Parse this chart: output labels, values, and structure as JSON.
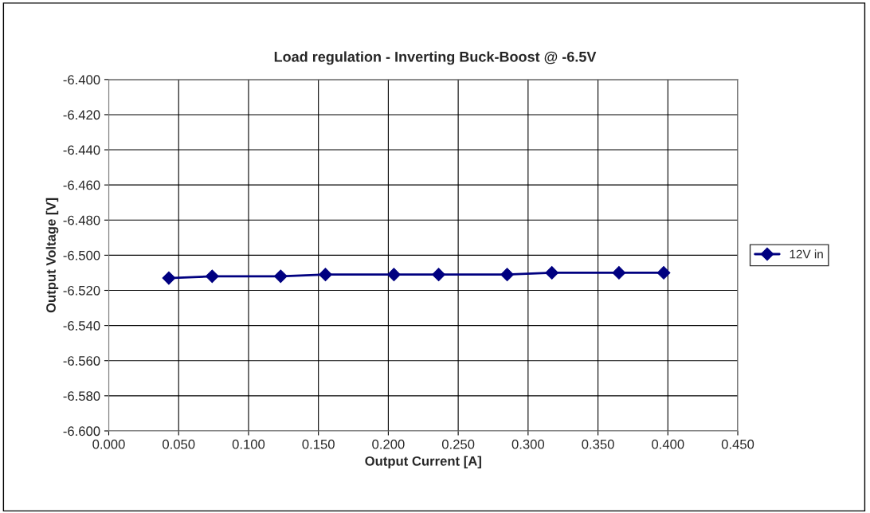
{
  "chart_data": {
    "type": "line",
    "title": "Load regulation - Inverting Buck-Boost @ -6.5V",
    "xlabel": "Output Current [A]",
    "ylabel": "Output Voltage [V]",
    "x": [
      0.043,
      0.074,
      0.123,
      0.155,
      0.204,
      0.236,
      0.285,
      0.317,
      0.365,
      0.397
    ],
    "series": [
      {
        "name": "12V in",
        "color": "#000080",
        "values": [
          -6.513,
          -6.512,
          -6.512,
          -6.511,
          -6.511,
          -6.511,
          -6.511,
          -6.51,
          -6.51,
          -6.51
        ]
      }
    ],
    "xlim": [
      0.0,
      0.45
    ],
    "xticks": [
      {
        "value": 0.0,
        "label": "0.000"
      },
      {
        "value": 0.05,
        "label": "0.050"
      },
      {
        "value": 0.1,
        "label": "0.100"
      },
      {
        "value": 0.15,
        "label": "0.150"
      },
      {
        "value": 0.2,
        "label": "0.200"
      },
      {
        "value": 0.25,
        "label": "0.250"
      },
      {
        "value": 0.3,
        "label": "0.300"
      },
      {
        "value": 0.35,
        "label": "0.350"
      },
      {
        "value": 0.4,
        "label": "0.400"
      },
      {
        "value": 0.45,
        "label": "0.450"
      }
    ],
    "ylim": [
      -6.6,
      -6.4
    ],
    "yticks": [
      {
        "value": -6.6,
        "label": "-6.600"
      },
      {
        "value": -6.58,
        "label": "-6.580"
      },
      {
        "value": -6.56,
        "label": "-6.560"
      },
      {
        "value": -6.54,
        "label": "-6.540"
      },
      {
        "value": -6.52,
        "label": "-6.520"
      },
      {
        "value": -6.5,
        "label": "-6.500"
      },
      {
        "value": -6.48,
        "label": "-6.480"
      },
      {
        "value": -6.46,
        "label": "-6.460"
      },
      {
        "value": -6.44,
        "label": "-6.440"
      },
      {
        "value": -6.42,
        "label": "-6.420"
      },
      {
        "value": -6.4,
        "label": "-6.400"
      }
    ],
    "grid": true,
    "legend": "right",
    "marker": "diamond",
    "line_style": "solid"
  }
}
